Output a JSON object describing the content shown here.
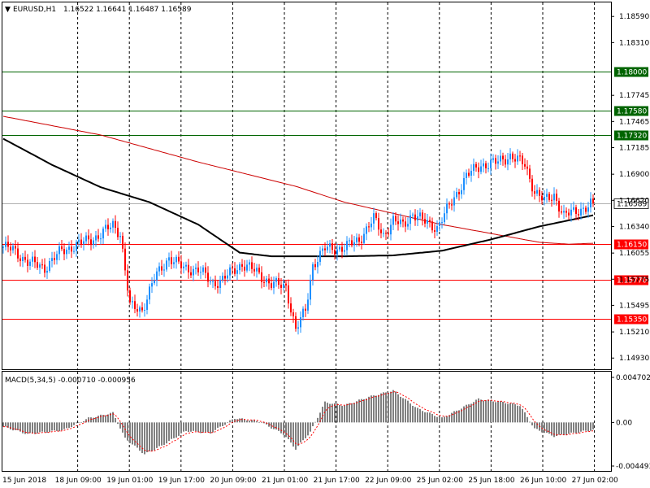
{
  "header": {
    "symbol": "EURUSD,H1",
    "ohlc": "1.16522 1.16641 1.16487 1.16589"
  },
  "macd_header": "MACD(5,34,5) -0.000710 -0.000956",
  "chart_data": {
    "type": "candlestick",
    "price_ticks": [
      "1.18590",
      "1.18310",
      "1.17745",
      "1.17465",
      "1.17185",
      "1.16900",
      "1.16620",
      "1.16340",
      "1.16055",
      "1.15775",
      "1.15495",
      "1.15210",
      "1.14930"
    ],
    "price_ylim": [
      1.1481,
      1.1874
    ],
    "levels": [
      {
        "label": "1.18000",
        "value": 1.18,
        "color": "#006400"
      },
      {
        "label": "1.17580",
        "value": 1.1758,
        "color": "#006400"
      },
      {
        "label": "1.17320",
        "value": 1.1732,
        "color": "#006400"
      },
      {
        "label": "1.16150",
        "value": 1.1615,
        "color": "#ff0000"
      },
      {
        "label": "1.15770",
        "value": 1.1577,
        "color": "#ff0000"
      },
      {
        "label": "1.15350",
        "value": 1.1535,
        "color": "#ff0000"
      }
    ],
    "current_price": {
      "label": "1.16589",
      "value": 1.16589
    },
    "x_labels": [
      "15 Jun 2018",
      "18 Jun 09:00",
      "19 Jun 01:00",
      "19 Jun 17:00",
      "20 Jun 09:00",
      "21 Jun 01:00",
      "21 Jun 17:00",
      "22 Jun 09:00",
      "25 Jun 02:00",
      "25 Jun 18:00",
      "26 Jun 10:00",
      "27 Jun 02:00"
    ],
    "macd_ticks": [
      "0.004702",
      "0.00",
      "-0.004493"
    ],
    "macd_ylim": [
      -0.004493,
      0.004702
    ],
    "keypoints": [
      [
        0,
        1.1612
      ],
      [
        4,
        1.1609
      ],
      [
        10,
        1.1596
      ],
      [
        17,
        1.159
      ],
      [
        24,
        1.1608
      ],
      [
        30,
        1.1614
      ],
      [
        40,
        1.1625
      ],
      [
        45,
        1.1636
      ],
      [
        48,
        1.1627
      ],
      [
        52,
        1.1548
      ],
      [
        57,
        1.1545
      ],
      [
        62,
        1.1578
      ],
      [
        68,
        1.1601
      ],
      [
        74,
        1.1589
      ],
      [
        80,
        1.1588
      ],
      [
        86,
        1.1573
      ],
      [
        90,
        1.1577
      ],
      [
        95,
        1.1588
      ],
      [
        98,
        1.1594
      ],
      [
        104,
        1.1585
      ],
      [
        110,
        1.1572
      ],
      [
        116,
        1.157
      ],
      [
        120,
        1.1523
      ],
      [
        124,
        1.1544
      ],
      [
        127,
        1.1593
      ],
      [
        132,
        1.161
      ],
      [
        140,
        1.1611
      ],
      [
        146,
        1.162
      ],
      [
        152,
        1.1642
      ],
      [
        156,
        1.1625
      ],
      [
        160,
        1.164
      ],
      [
        164,
        1.1635
      ],
      [
        168,
        1.1648
      ],
      [
        172,
        1.164
      ],
      [
        178,
        1.1633
      ],
      [
        184,
        1.166
      ],
      [
        190,
        1.1688
      ],
      [
        196,
        1.17
      ],
      [
        202,
        1.1702
      ],
      [
        208,
        1.171
      ],
      [
        214,
        1.17
      ],
      [
        218,
        1.1672
      ],
      [
        222,
        1.1661
      ],
      [
        226,
        1.1668
      ],
      [
        230,
        1.1645
      ],
      [
        236,
        1.1652
      ],
      [
        240,
        1.1655
      ],
      [
        242,
        1.16589
      ]
    ],
    "ma_fast": [
      [
        0,
        1.1728
      ],
      [
        20,
        1.17
      ],
      [
        40,
        1.1676
      ],
      [
        60,
        1.166
      ],
      [
        80,
        1.1636
      ],
      [
        97,
        1.1606
      ],
      [
        110,
        1.1602
      ],
      [
        140,
        1.1602
      ],
      [
        160,
        1.1603
      ],
      [
        180,
        1.1608
      ],
      [
        200,
        1.162
      ],
      [
        220,
        1.1634
      ],
      [
        242,
        1.1646
      ]
    ],
    "ma_slow": [
      [
        0,
        1.1752
      ],
      [
        40,
        1.1732
      ],
      [
        80,
        1.1703
      ],
      [
        120,
        1.1677
      ],
      [
        140,
        1.166
      ],
      [
        180,
        1.1636
      ],
      [
        220,
        1.1617
      ],
      [
        232,
        1.1615
      ],
      [
        242,
        1.1616
      ]
    ],
    "macd_hist": [
      [
        0,
        -0.0004
      ],
      [
        10,
        -0.0011
      ],
      [
        25,
        -0.0007
      ],
      [
        35,
        0.0004
      ],
      [
        45,
        0.0009
      ],
      [
        50,
        -0.0015
      ],
      [
        58,
        -0.003
      ],
      [
        65,
        -0.0022
      ],
      [
        75,
        -0.0008
      ],
      [
        85,
        -0.001
      ],
      [
        95,
        0.0004
      ],
      [
        105,
        0.0001
      ],
      [
        115,
        -0.0011
      ],
      [
        120,
        -0.0025
      ],
      [
        126,
        -0.0009
      ],
      [
        132,
        0.0019
      ],
      [
        140,
        0.0016
      ],
      [
        150,
        0.0024
      ],
      [
        160,
        0.003
      ],
      [
        170,
        0.0013
      ],
      [
        180,
        0.0004
      ],
      [
        186,
        0.0011
      ],
      [
        195,
        0.0022
      ],
      [
        205,
        0.0019
      ],
      [
        212,
        0.0016
      ],
      [
        218,
        -0.0006
      ],
      [
        226,
        -0.0013
      ],
      [
        234,
        -0.001
      ],
      [
        242,
        -0.0007
      ]
    ]
  }
}
